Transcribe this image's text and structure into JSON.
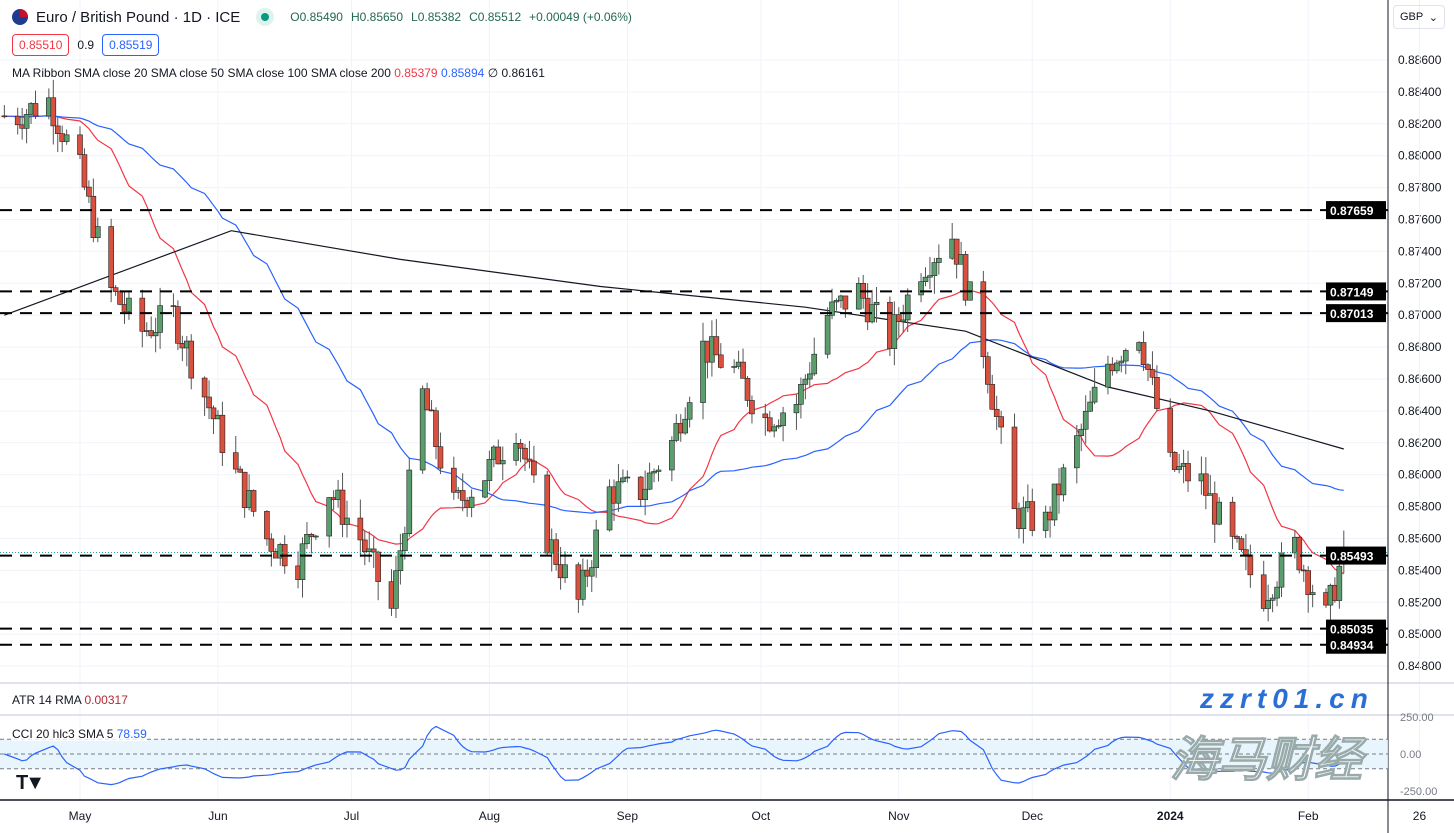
{
  "header": {
    "symbol": "Euro / British Pound · 1D · ICE",
    "open": "O0.85490",
    "high": "H0.85650",
    "low": "L0.85382",
    "close": "C0.85512",
    "change": "+0.00049 (+0.06%)"
  },
  "quote": {
    "sell": "0.85510",
    "spread": "0.9",
    "buy": "0.85519"
  },
  "indicators": {
    "ribbon_label": "MA Ribbon SMA close 20 SMA close 50 SMA close 100 SMA close 200",
    "sma20": "0.85379",
    "sma50": "0.85894",
    "sma100": "∅",
    "sma200": "0.86161",
    "atr_label": "ATR 14 RMA",
    "atr_value": "0.00317",
    "cci_label": "CCI 20 hlc3 SMA 5",
    "cci_value": "78.59"
  },
  "currency": "GBP",
  "watermark": {
    "cn": "海马财经",
    "url": "zzrt01.cn"
  },
  "colors": {
    "up": "#5b9e6e",
    "down": "#d9503f",
    "sma20": "#f23645",
    "sma50": "#2962ff",
    "sma200": "#131722",
    "cci": "#2962ff"
  },
  "chart_data": {
    "type": "candlestick",
    "title": "Euro / British Pound · 1D · ICE",
    "ylim": [
      0.8475,
      0.8872
    ],
    "yticks": [
      "0.88600",
      "0.88400",
      "0.88200",
      "0.88000",
      "0.87800",
      "0.87600",
      "0.87400",
      "0.87200",
      "0.87000",
      "0.86800",
      "0.86600",
      "0.86400",
      "0.86200",
      "0.86000",
      "0.85800",
      "0.85600",
      "0.85400",
      "0.85200",
      "0.85000",
      "0.84800"
    ],
    "xticks": [
      {
        "label": "May",
        "date": "2023-05-01"
      },
      {
        "label": "Jun",
        "date": "2023-06-01"
      },
      {
        "label": "Jul",
        "date": "2023-07-01"
      },
      {
        "label": "Aug",
        "date": "2023-08-01"
      },
      {
        "label": "Sep",
        "date": "2023-09-01"
      },
      {
        "label": "Oct",
        "date": "2023-10-01"
      },
      {
        "label": "Nov",
        "date": "2023-11-01"
      },
      {
        "label": "Dec",
        "date": "2023-12-01"
      },
      {
        "label": "2024",
        "date": "2024-01-01"
      },
      {
        "label": "Feb",
        "date": "2024-02-01"
      },
      {
        "label": "26",
        "date": "2024-02-26"
      }
    ],
    "weekly_closes": [
      [
        "2023-04-17",
        0.8825
      ],
      [
        "2023-04-24",
        0.8835
      ],
      [
        "2023-05-01",
        0.879
      ],
      [
        "2023-05-08",
        0.8715
      ],
      [
        "2023-05-15",
        0.869
      ],
      [
        "2023-05-22",
        0.87
      ],
      [
        "2023-05-29",
        0.865
      ],
      [
        "2023-06-05",
        0.86
      ],
      [
        "2023-06-12",
        0.856
      ],
      [
        "2023-06-19",
        0.8545
      ],
      [
        "2023-06-26",
        0.859
      ],
      [
        "2023-07-03",
        0.856
      ],
      [
        "2023-07-10",
        0.8515
      ],
      [
        "2023-07-17",
        0.865
      ],
      [
        "2023-07-24",
        0.858
      ],
      [
        "2023-07-31",
        0.86
      ],
      [
        "2023-08-07",
        0.863
      ],
      [
        "2023-08-14",
        0.856
      ],
      [
        "2023-08-21",
        0.852
      ],
      [
        "2023-08-28",
        0.859
      ],
      [
        "2023-09-04",
        0.859
      ],
      [
        "2023-09-11",
        0.862
      ],
      [
        "2023-09-18",
        0.868
      ],
      [
        "2023-09-25",
        0.8665
      ],
      [
        "2023-10-02",
        0.8635
      ],
      [
        "2023-10-09",
        0.8645
      ],
      [
        "2023-10-16",
        0.87
      ],
      [
        "2023-10-23",
        0.8715
      ],
      [
        "2023-10-30",
        0.8685
      ],
      [
        "2023-11-06",
        0.873
      ],
      [
        "2023-11-13",
        0.875
      ],
      [
        "2023-11-20",
        0.868
      ],
      [
        "2023-11-27",
        0.8575
      ],
      [
        "2023-12-04",
        0.857
      ],
      [
        "2023-12-11",
        0.862
      ],
      [
        "2023-12-18",
        0.867
      ],
      [
        "2023-12-25",
        0.869
      ],
      [
        "2024-01-01",
        0.8605
      ],
      [
        "2024-01-08",
        0.8595
      ],
      [
        "2024-01-15",
        0.8555
      ],
      [
        "2024-01-22",
        0.8525
      ],
      [
        "2024-01-29",
        0.8555
      ],
      [
        "2024-02-05",
        0.851
      ],
      [
        "2024-02-09",
        0.85512
      ]
    ],
    "sma200": [
      [
        "2023-04-14",
        0.87
      ],
      [
        "2023-06-04",
        0.8753
      ],
      [
        "2023-07-12",
        0.8735
      ],
      [
        "2023-08-26",
        0.8718
      ],
      [
        "2023-10-11",
        0.8705
      ],
      [
        "2023-11-16",
        0.869
      ],
      [
        "2023-12-18",
        0.8655
      ],
      [
        "2024-01-10",
        0.864
      ],
      [
        "2024-02-09",
        0.86161
      ]
    ],
    "levels": [
      "0.87659",
      "0.87149",
      "0.87013",
      "0.85493",
      "0.85035",
      "0.84934"
    ],
    "cci_levels": [
      "250.00",
      "0.00",
      "-250.00"
    ],
    "grid": true
  }
}
